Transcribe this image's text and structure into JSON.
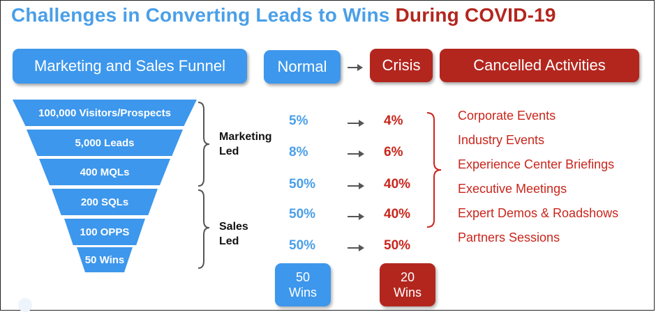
{
  "title": {
    "part1": "Challenges in Converting Leads to Wins",
    "part2": "During COVID-19"
  },
  "headers": {
    "funnel": "Marketing and Sales Funnel",
    "normal": "Normal",
    "crisis": "Crisis",
    "cancelled": "Cancelled Activities"
  },
  "funnel": [
    {
      "label": "100,000 Visitors/Prospects"
    },
    {
      "label": "5,000 Leads"
    },
    {
      "label": "400 MQLs"
    },
    {
      "label": "200 SQLs"
    },
    {
      "label": "100 OPPS"
    },
    {
      "label": "50 Wins"
    }
  ],
  "groups": {
    "marketing": {
      "line1": "Marketing",
      "line2": "Led"
    },
    "sales": {
      "line1": "Sales",
      "line2": "Led"
    }
  },
  "rates": [
    {
      "normal": "5%",
      "crisis": "4%"
    },
    {
      "normal": "8%",
      "crisis": "6%"
    },
    {
      "normal": "50%",
      "crisis": "40%"
    },
    {
      "normal": "50%",
      "crisis": "40%"
    },
    {
      "normal": "50%",
      "crisis": "50%"
    }
  ],
  "cancelled_activities": [
    "Corporate Events",
    "Industry Events",
    "Experience Center Briefings",
    "Executive Meetings",
    "Expert Demos & Roadshows",
    "Partners Sessions"
  ],
  "wins": {
    "normal": {
      "count": "50",
      "label": "Wins"
    },
    "crisis": {
      "count": "20",
      "label": "Wins"
    }
  },
  "colors": {
    "blue": "#3d97ec",
    "red": "#b3261e",
    "title_blue": "#4a9fe8"
  }
}
